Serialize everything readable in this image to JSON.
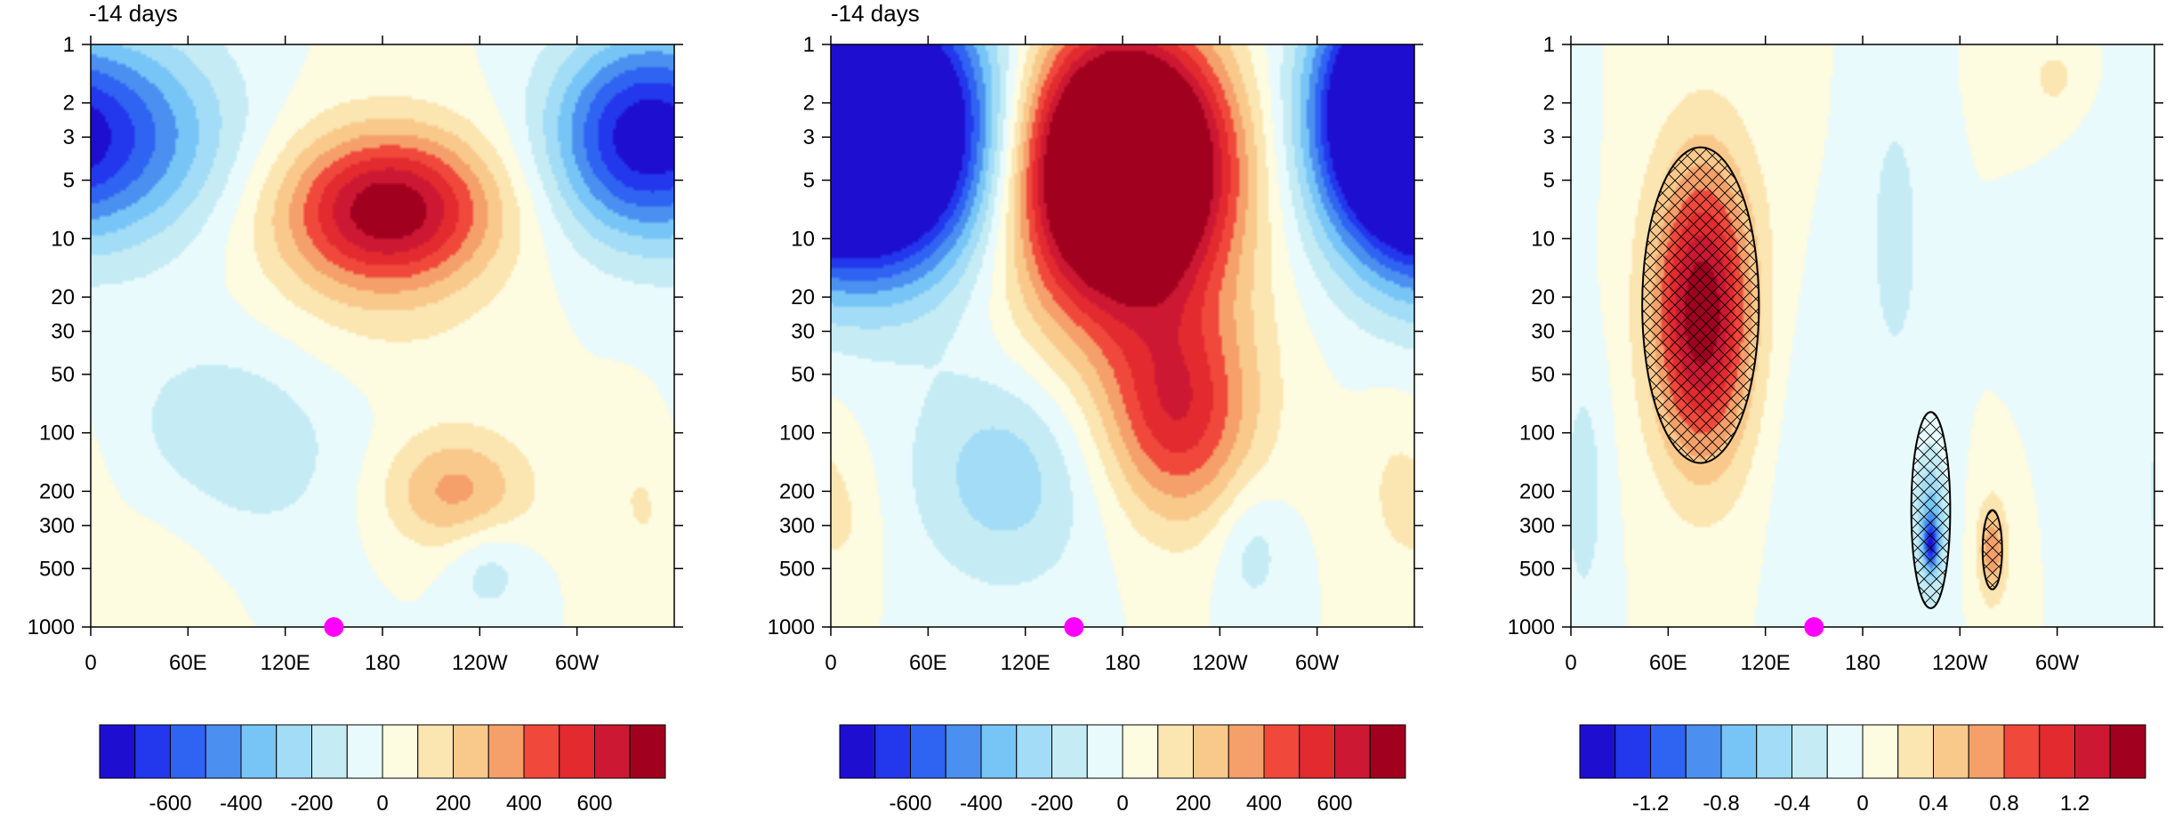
{
  "chart_data": [
    {
      "type": "heatmap",
      "title": "-14 days",
      "x_ticks": [
        "0",
        "60E",
        "120E",
        "180",
        "120W",
        "60W"
      ],
      "x_tick_values": [
        0,
        60,
        120,
        180,
        240,
        300
      ],
      "x_range": [
        0,
        360
      ],
      "y_ticks": [
        "1",
        "2",
        "3",
        "5",
        "10",
        "20",
        "30",
        "50",
        "100",
        "200",
        "300",
        "500",
        "1000"
      ],
      "y_tick_values": [
        1,
        2,
        3,
        5,
        10,
        20,
        30,
        50,
        100,
        200,
        300,
        500,
        1000
      ],
      "y_range": [
        1,
        1000
      ],
      "y_scale": "log",
      "y_inverted": true,
      "marker": {
        "x": 150,
        "y": 1000,
        "color": "#ff00ff"
      },
      "colorbar": {
        "labels": [
          "-600",
          "-400",
          "-200",
          "0",
          "200",
          "400",
          "600"
        ],
        "label_values": [
          -600,
          -400,
          -200,
          0,
          200,
          400,
          600
        ],
        "levels": [
          -700,
          -600,
          -500,
          -400,
          -300,
          -200,
          -100,
          0,
          100,
          200,
          300,
          400,
          500,
          600,
          700
        ],
        "colors": [
          "#1e0fd0",
          "#2337ec",
          "#2f63f2",
          "#4b8ff0",
          "#77c5f7",
          "#a2dcf6",
          "#c5ecf4",
          "#e9fafc",
          "#fdfbe0",
          "#fbe5b0",
          "#f9c98c",
          "#f5a06a",
          "#f0483b",
          "#e22a2f",
          "#cc1833",
          "#a1001f"
        ]
      },
      "blobs": [
        {
          "x": 185,
          "y": 7,
          "rx": 62,
          "ry": 2.4,
          "value": 700
        },
        {
          "x": 225,
          "y": 200,
          "rx": 45,
          "ry": 2.0,
          "value": 330
        },
        {
          "x": 20,
          "y": 3,
          "rx": 70,
          "ry": 3.5,
          "value": -480
        },
        {
          "x": 330,
          "y": 3,
          "rx": 50,
          "ry": 3.2,
          "value": -470
        },
        {
          "x": 95,
          "y": 100,
          "rx": 80,
          "ry": 4.0,
          "value": -190
        },
        {
          "x": 245,
          "y": 500,
          "rx": 25,
          "ry": 1.8,
          "value": -160
        },
        {
          "x": 340,
          "y": 200,
          "rx": 30,
          "ry": 3.0,
          "value": 110
        },
        {
          "x": 40,
          "y": 500,
          "rx": 50,
          "ry": 3.0,
          "value": 80
        },
        {
          "x": 165,
          "y": 15,
          "rx": 85,
          "ry": 6.0,
          "value": 130
        }
      ]
    },
    {
      "type": "heatmap",
      "title": "-14 days",
      "x_ticks": [
        "0",
        "60E",
        "120E",
        "180",
        "120W",
        "60W"
      ],
      "x_tick_values": [
        0,
        60,
        120,
        180,
        240,
        300
      ],
      "x_range": [
        0,
        360
      ],
      "y_ticks": [
        "1",
        "2",
        "3",
        "5",
        "10",
        "20",
        "30",
        "50",
        "100",
        "200",
        "300",
        "500",
        "1000"
      ],
      "y_tick_values": [
        1,
        2,
        3,
        5,
        10,
        20,
        30,
        50,
        100,
        200,
        300,
        500,
        1000
      ],
      "y_range": [
        1,
        1000
      ],
      "y_scale": "log",
      "y_inverted": true,
      "marker": {
        "x": 150,
        "y": 1000,
        "color": "#ff00ff"
      },
      "colorbar": {
        "labels": [
          "-600",
          "-400",
          "-200",
          "0",
          "200",
          "400",
          "600"
        ],
        "label_values": [
          -600,
          -400,
          -200,
          0,
          200,
          400,
          600
        ],
        "levels": [
          -700,
          -600,
          -500,
          -400,
          -300,
          -200,
          -100,
          0,
          100,
          200,
          300,
          400,
          500,
          600,
          700
        ],
        "colors": [
          "#1e0fd0",
          "#2337ec",
          "#2f63f2",
          "#4b8ff0",
          "#77c5f7",
          "#a2dcf6",
          "#c5ecf4",
          "#e9fafc",
          "#fdfbe0",
          "#fbe5b0",
          "#f9c98c",
          "#f5a06a",
          "#f0483b",
          "#e22a2f",
          "#cc1833",
          "#a1001f"
        ]
      },
      "blobs": [
        {
          "x": 180,
          "y": 4,
          "rx": 62,
          "ry": 4.5,
          "value": 1500
        },
        {
          "x": 215,
          "y": 80,
          "rx": 45,
          "ry": 3.5,
          "value": 500
        },
        {
          "x": 30,
          "y": 3,
          "rx": 75,
          "ry": 5.0,
          "value": -1400
        },
        {
          "x": 350,
          "y": 2,
          "rx": 45,
          "ry": 4.0,
          "value": -900
        },
        {
          "x": 110,
          "y": 150,
          "rx": 60,
          "ry": 4.0,
          "value": -300
        },
        {
          "x": 260,
          "y": 400,
          "rx": 22,
          "ry": 2.2,
          "value": -160
        },
        {
          "x": 350,
          "y": 200,
          "rx": 25,
          "ry": 3.0,
          "value": 120
        },
        {
          "x": 15,
          "y": 300,
          "rx": 20,
          "ry": 2.5,
          "value": 70
        },
        {
          "x": 170,
          "y": 20,
          "rx": 90,
          "ry": 8.0,
          "value": 200
        }
      ]
    },
    {
      "type": "heatmap",
      "x_ticks": [
        "0",
        "60E",
        "120E",
        "180",
        "120W",
        "60W"
      ],
      "x_tick_values": [
        0,
        60,
        120,
        180,
        240,
        300
      ],
      "x_range": [
        0,
        360
      ],
      "y_ticks": [
        "1",
        "2",
        "3",
        "5",
        "10",
        "20",
        "30",
        "50",
        "100",
        "200",
        "300",
        "500",
        "1000"
      ],
      "y_tick_values": [
        1,
        2,
        3,
        5,
        10,
        20,
        30,
        50,
        100,
        200,
        300,
        500,
        1000
      ],
      "y_range": [
        1,
        1000
      ],
      "y_scale": "log",
      "y_inverted": true,
      "marker": {
        "x": 150,
        "y": 1000,
        "color": "#ff00ff"
      },
      "colorbar": {
        "labels": [
          "-1.2",
          "-0.8",
          "-0.4",
          "0",
          "0.4",
          "0.8",
          "1.2"
        ],
        "label_values": [
          -1.2,
          -0.8,
          -0.4,
          0,
          0.4,
          0.8,
          1.2
        ],
        "levels": [
          -1.4,
          -1.2,
          -1.0,
          -0.8,
          -0.6,
          -0.4,
          -0.2,
          0,
          0.2,
          0.4,
          0.6,
          0.8,
          1.0,
          1.2,
          1.4
        ],
        "colors": [
          "#1e0fd0",
          "#2337ec",
          "#2f63f2",
          "#4b8ff0",
          "#77c5f7",
          "#a2dcf6",
          "#c5ecf4",
          "#e9fafc",
          "#fdfbe0",
          "#fbe5b0",
          "#f9c98c",
          "#f5a06a",
          "#f0483b",
          "#e22a2f",
          "#cc1833",
          "#a1001f"
        ]
      },
      "blobs": [
        {
          "x": 80,
          "y": 25,
          "rx": 28,
          "ry": 5.0,
          "value": 1.15
        },
        {
          "x": 85,
          "y": 20,
          "rx": 40,
          "ry": 9.0,
          "value": 0.45
        },
        {
          "x": 222,
          "y": 300,
          "rx": 10,
          "ry": 2.3,
          "value": -0.75
        },
        {
          "x": 222,
          "y": 380,
          "rx": 4,
          "ry": 1.3,
          "value": -0.85
        },
        {
          "x": 260,
          "y": 400,
          "rx": 9,
          "ry": 1.8,
          "value": 0.75
        },
        {
          "x": 200,
          "y": 10,
          "rx": 18,
          "ry": 6.0,
          "value": -0.3
        },
        {
          "x": 8,
          "y": 200,
          "rx": 15,
          "ry": 5.0,
          "value": -0.3
        },
        {
          "x": 300,
          "y": 1.5,
          "rx": 25,
          "ry": 1.8,
          "value": 0.25
        },
        {
          "x": 335,
          "y": 5,
          "rx": 30,
          "ry": 5.0,
          "value": -0.15
        },
        {
          "x": 140,
          "y": 100,
          "rx": 25,
          "ry": 10.0,
          "value": -0.12
        }
      ],
      "hatched_regions": [
        {
          "x": 80,
          "y": 22,
          "rx": 36,
          "ry": 6.5
        },
        {
          "x": 222,
          "y": 250,
          "rx": 12,
          "ry": 3.2
        },
        {
          "x": 260,
          "y": 400,
          "rx": 6,
          "ry": 1.6
        }
      ]
    }
  ]
}
